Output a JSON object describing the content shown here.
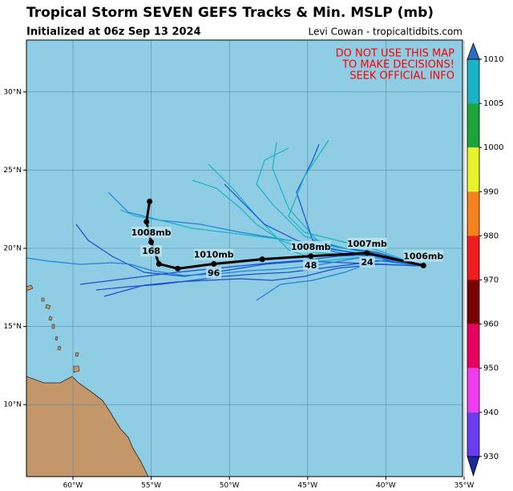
{
  "title": "Tropical Storm SEVEN GEFS Tracks & Min. MSLP (mb)",
  "subtitle": "Initialized at 06z Sep 13 2024",
  "credit": "Levi Cowan - tropicaltidbits.com",
  "warning": [
    "DO NOT USE THIS MAP",
    "TO MAKE DECISIONS!",
    "SEEK OFFICIAL INFO"
  ],
  "lon_ticks": [
    {
      "value": -60,
      "label": "60°W"
    },
    {
      "value": -55,
      "label": "55°W"
    },
    {
      "value": -50,
      "label": "50°W"
    },
    {
      "value": -45,
      "label": "45°W"
    },
    {
      "value": -40,
      "label": "40°W"
    },
    {
      "value": -35,
      "label": "35°W"
    }
  ],
  "lat_ticks": [
    {
      "value": 30,
      "label": "30°N"
    },
    {
      "value": 25,
      "label": "25°N"
    },
    {
      "value": 20,
      "label": "20°N"
    },
    {
      "value": 15,
      "label": "15°N"
    },
    {
      "value": 10,
      "label": "10°N"
    }
  ],
  "mean_track": [
    {
      "lon": -37.6,
      "lat": 18.9,
      "pressure": "1006mb"
    },
    {
      "lon": -41.2,
      "lat": 19.7,
      "hour": "24",
      "pressure": "1007mb"
    },
    {
      "lon": -44.8,
      "lat": 19.5,
      "hour": "48",
      "pressure": "1008mb"
    },
    {
      "lon": -47.9,
      "lat": 19.3
    },
    {
      "lon": -51.0,
      "lat": 19.0,
      "hour": "96",
      "pressure": "1010mb"
    },
    {
      "lon": -53.3,
      "lat": 18.7
    },
    {
      "lon": -54.5,
      "lat": 19.0
    },
    {
      "lon": -55.0,
      "lat": 20.4,
      "hour": "168",
      "pressure": "1008mb"
    },
    {
      "lon": -55.3,
      "lat": 21.7
    },
    {
      "lon": -55.1,
      "lat": 23.0
    }
  ],
  "colorbar": {
    "ticks": [
      1010,
      1005,
      1000,
      990,
      980,
      970,
      960,
      950,
      940,
      930
    ],
    "colors": [
      "#17b3c6",
      "#1ba53b",
      "#e6f52a",
      "#f5821e",
      "#ee1c1c",
      "#7a0000",
      "#e8005e",
      "#f03cf0",
      "#6a3cf0"
    ],
    "top_color": "#2a6ec0",
    "bottom_color": "#1a2a9e"
  }
}
